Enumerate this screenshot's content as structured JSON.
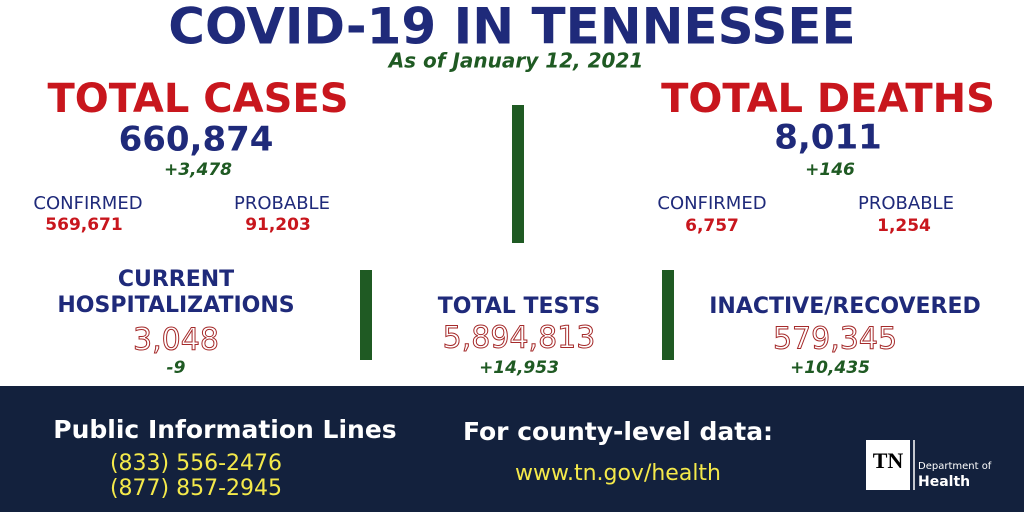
{
  "header": {
    "title": "COVID-19 IN TENNESSEE",
    "subtitle": "As of January 12, 2021"
  },
  "total_cases": {
    "label": "TOTAL CASES",
    "value": "660,874",
    "change": "+3,478",
    "confirmed": {
      "label": "CONFIRMED",
      "value": "569,671"
    },
    "probable": {
      "label": "PROBABLE",
      "value": "91,203"
    }
  },
  "total_deaths": {
    "label": "TOTAL DEATHS",
    "value": "8,011",
    "change": "+146",
    "confirmed": {
      "label": "CONFIRMED",
      "value": "6,757"
    },
    "probable": {
      "label": "PROBABLE",
      "value": "1,254"
    }
  },
  "hospitalizations": {
    "label": [
      "CURRENT",
      "HOSPITALIZATIONS"
    ],
    "value": "3,048",
    "change": "-9"
  },
  "total_tests": {
    "label": "TOTAL TESTS",
    "value": "5,894,813",
    "change": "+14,953"
  },
  "recovered": {
    "label": "INACTIVE/RECOVERED",
    "value": "579,345",
    "change": "+10,435"
  },
  "footer": {
    "info_lines": {
      "title": "Public Information Lines",
      "phones": [
        "(833) 556-2476",
        "(877) 857-2945"
      ]
    },
    "county_data": {
      "title": "For county-level data:",
      "url": "www.tn.gov/health"
    },
    "logo": {
      "abbr": "TN",
      "line1": "Department of",
      "line2": "Health"
    }
  }
}
